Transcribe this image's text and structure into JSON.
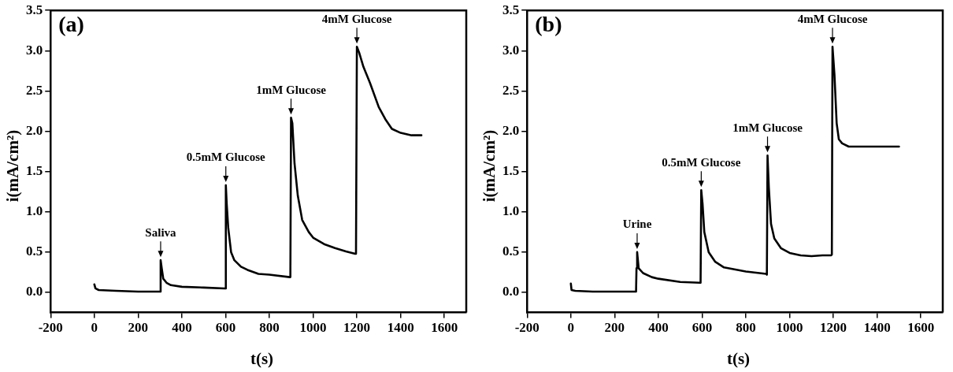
{
  "chart_data": [
    {
      "type": "line",
      "xlabel": "t(s)",
      "ylabel": "i(mA/cm²)",
      "xlim": [
        -200,
        1700
      ],
      "xticks": [
        -200,
        0,
        200,
        400,
        600,
        800,
        1000,
        1200,
        1400,
        1600
      ],
      "ylim": [
        -0.25,
        3.5
      ],
      "yticks": [
        {
          "value": 0,
          "label": "0.0"
        },
        0.5,
        {
          "value": 1,
          "label": "1.0"
        },
        1.5,
        {
          "value": 2,
          "label": "2.0"
        },
        2.5,
        {
          "value": 3,
          "label": "3.0"
        },
        3.5
      ],
      "grid": false,
      "legend": false,
      "marker": "none",
      "line_style": "solid",
      "annotations": [
        "(a)",
        {
          "text": "Saliva",
          "x": 303,
          "y": 0.4
        },
        {
          "text": "0.5mM Glucose",
          "x": 601,
          "y": 1.33
        },
        {
          "text": "1mM Glucose",
          "x": 899,
          "y": 2.17
        },
        {
          "text": "4mM Glucose",
          "x": 1200,
          "y": 3.05
        }
      ],
      "series": [
        {
          "color": "#000000",
          "x": [
            0,
            5,
            20,
            100,
            200,
            298,
            300,
            303,
            308,
            315,
            330,
            350,
            400,
            500,
            596,
            599,
            601,
            605,
            612,
            625,
            640,
            670,
            700,
            750,
            800,
            893,
            896,
            899,
            905,
            915,
            930,
            950,
            980,
            1000,
            1050,
            1100,
            1150,
            1192,
            1196,
            1200,
            1210,
            1230,
            1260,
            1300,
            1330,
            1360,
            1400,
            1450,
            1495
          ],
          "values": [
            0.1,
            0.05,
            0.03,
            0.02,
            0.01,
            0.01,
            0.01,
            0.4,
            0.3,
            0.17,
            0.12,
            0.09,
            0.07,
            0.06,
            0.05,
            0.05,
            1.33,
            1.1,
            0.8,
            0.5,
            0.4,
            0.32,
            0.28,
            0.23,
            0.22,
            0.19,
            0.19,
            2.17,
            2.1,
            1.6,
            1.2,
            0.9,
            0.75,
            0.68,
            0.6,
            0.55,
            0.51,
            0.48,
            0.48,
            3.05,
            2.98,
            2.8,
            2.6,
            2.3,
            2.15,
            2.03,
            1.98,
            1.95,
            1.95
          ]
        }
      ]
    },
    {
      "type": "line",
      "xlabel": "t(s)",
      "ylabel": "i(mA/cm²)",
      "xlim": [
        -200,
        1700
      ],
      "xticks": [
        -200,
        0,
        200,
        400,
        600,
        800,
        1000,
        1200,
        1400,
        1600
      ],
      "ylim": [
        -0.25,
        3.5
      ],
      "yticks": [
        {
          "value": 0,
          "label": "0.0"
        },
        0.5,
        {
          "value": 1,
          "label": "1.0"
        },
        1.5,
        {
          "value": 2,
          "label": "2.0"
        },
        2.5,
        {
          "value": 3,
          "label": "3.0"
        },
        3.5
      ],
      "grid": false,
      "legend": false,
      "marker": "none",
      "line_style": "solid",
      "annotations": [
        "(b)",
        {
          "text": "Urine",
          "x": 303,
          "y": 0.5
        },
        {
          "text": "0.5mM Glucose",
          "x": 596,
          "y": 1.27
        },
        {
          "text": "1mM Glucose",
          "x": 899,
          "y": 1.7
        },
        {
          "text": "4mM Glucose",
          "x": 1196,
          "y": 3.05
        }
      ],
      "series": [
        {
          "color": "#000000",
          "x": [
            0,
            3,
            20,
            100,
            200,
            298,
            300,
            303,
            310,
            330,
            370,
            400,
            500,
            590,
            593,
            596,
            602,
            610,
            630,
            660,
            700,
            800,
            893,
            896,
            899,
            905,
            915,
            930,
            960,
            1000,
            1050,
            1100,
            1150,
            1190,
            1193,
            1196,
            1205,
            1215,
            1225,
            1240,
            1270,
            1300,
            1400,
            1500
          ],
          "values": [
            0.11,
            0.03,
            0.02,
            0.01,
            0.01,
            0.01,
            0.3,
            0.5,
            0.3,
            0.24,
            0.19,
            0.17,
            0.13,
            0.12,
            0.12,
            1.27,
            1.1,
            0.75,
            0.5,
            0.38,
            0.31,
            0.26,
            0.23,
            0.22,
            1.7,
            1.3,
            0.85,
            0.67,
            0.55,
            0.49,
            0.46,
            0.45,
            0.46,
            0.46,
            0.47,
            3.05,
            2.7,
            2.1,
            1.9,
            1.85,
            1.81,
            1.81,
            1.81,
            1.81
          ]
        }
      ]
    }
  ]
}
